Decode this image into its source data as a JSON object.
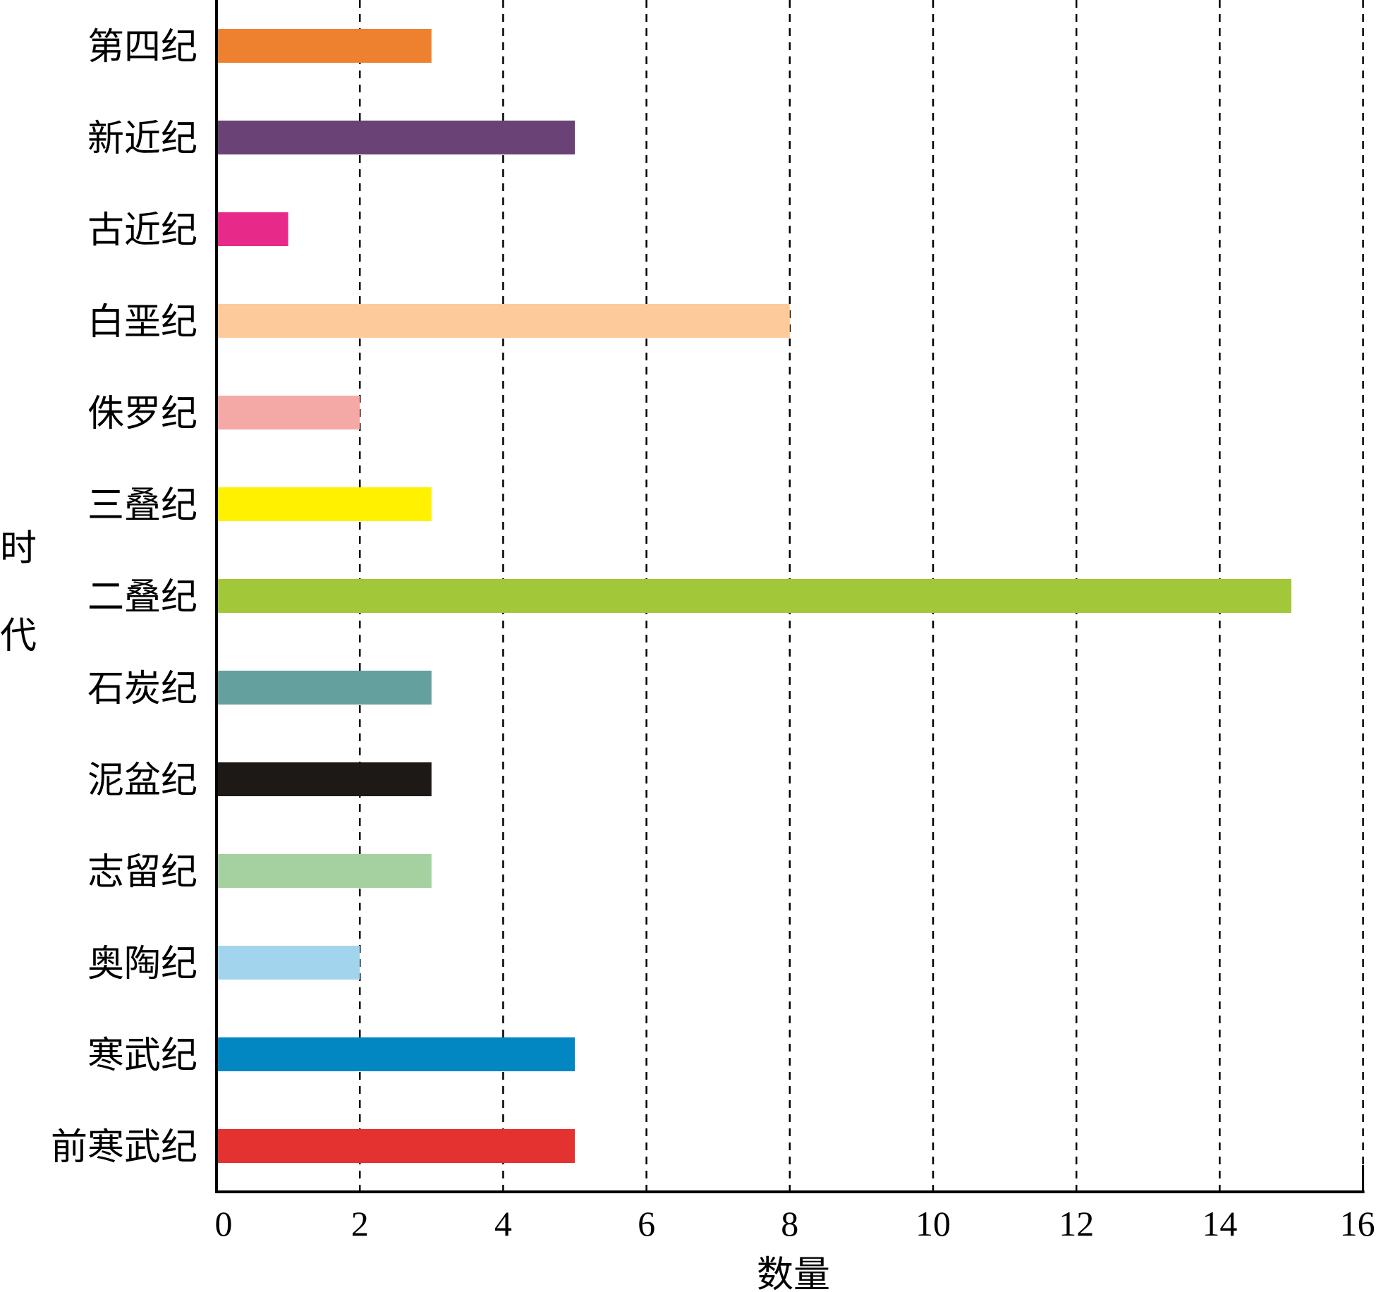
{
  "chart_data": {
    "type": "bar",
    "orientation": "horizontal",
    "categories": [
      "第四纪",
      "新近纪",
      "古近纪",
      "白垩纪",
      "侏罗纪",
      "三叠纪",
      "二叠纪",
      "石炭纪",
      "泥盆纪",
      "志留纪",
      "奥陶纪",
      "寒武纪",
      "前寒武纪"
    ],
    "values": [
      3,
      5,
      1,
      8,
      2,
      3,
      15,
      3,
      3,
      3,
      2,
      5,
      5
    ],
    "colors": [
      "#ee8130",
      "#6a4275",
      "#e7298a",
      "#fdcb9b",
      "#f5a9a7",
      "#fff100",
      "#a2c739",
      "#63a09e",
      "#1c1917",
      "#a5d1a1",
      "#a3d4ee",
      "#0387c3",
      "#e3322f"
    ],
    "xlabel": "数量",
    "ylabel": "时代",
    "xlim": [
      0,
      16
    ],
    "xticks": [
      "0",
      "2",
      "4",
      "6",
      "8",
      "10",
      "12",
      "14",
      "16"
    ],
    "grid": "vertical-dashed"
  }
}
